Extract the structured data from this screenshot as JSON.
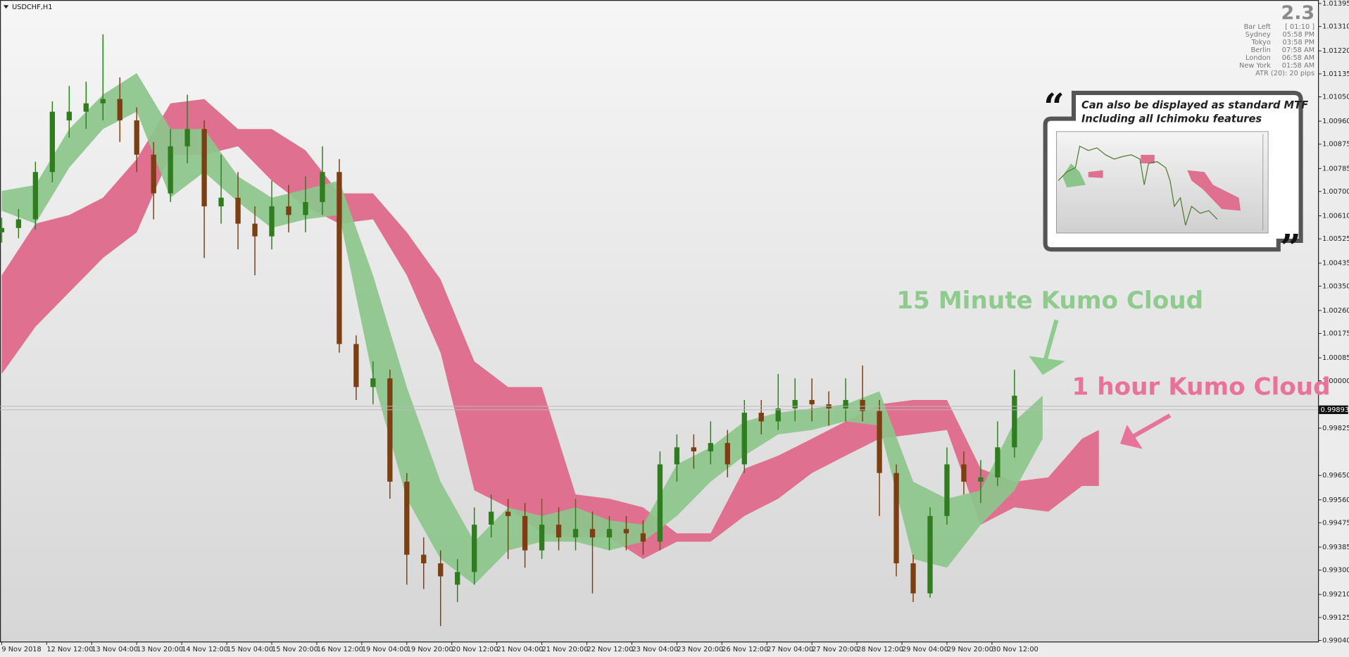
{
  "chart_data": {
    "type": "candlestick",
    "title": "USDCHF,H1",
    "up_color": "#2f7d1f",
    "down_color": "#7b3f12",
    "xlim": [
      -0.6,
      467.9
    ],
    "ylim": [
      0.99036,
      1.01408
    ],
    "yticks": [
      1.01395,
      {
        "value": 1.0131,
        "label": "1.01310"
      },
      {
        "value": 1.0122,
        "label": "1.01220"
      },
      1.01135,
      {
        "value": 1.0105,
        "label": "1.01050"
      },
      {
        "value": 1.0096,
        "label": "1.00960"
      },
      1.00875,
      1.00785,
      {
        "value": 1.007,
        "label": "1.00700"
      },
      {
        "value": 1.0061,
        "label": "1.00610"
      },
      1.00525,
      1.00435,
      {
        "value": 1.0035,
        "label": "1.00350"
      },
      {
        "value": 1.0026,
        "label": "1.00260"
      },
      1.00175,
      1.00085,
      {
        "value": 1,
        "label": "1.00000"
      },
      0.99825,
      {
        "value": 0.9965,
        "label": "0.99650"
      },
      {
        "value": 0.9956,
        "label": "0.99560"
      },
      0.99475,
      0.99385,
      {
        "value": 0.993,
        "label": "0.99300"
      },
      {
        "value": 0.9921,
        "label": "0.99210"
      },
      0.99125,
      {
        "value": 0.9904,
        "label": "0.99040"
      }
    ],
    "xticks": [
      {
        "value": 0,
        "label": "9 Nov 2018"
      },
      {
        "value": 16,
        "label": "12 Nov 12:00"
      },
      {
        "value": 32,
        "label": "13 Nov 04:00"
      },
      {
        "value": 48,
        "label": "13 Nov 20:00"
      },
      {
        "value": 64,
        "label": "14 Nov 12:00"
      },
      {
        "value": 80,
        "label": "15 Nov 04:00"
      },
      {
        "value": 96,
        "label": "15 Nov 20:00"
      },
      {
        "value": 112,
        "label": "16 Nov 12:00"
      },
      {
        "value": 128,
        "label": "19 Nov 04:00"
      },
      {
        "value": 144,
        "label": "19 Nov 20:00"
      },
      {
        "value": 160,
        "label": "20 Nov 12:00"
      },
      {
        "value": 176,
        "label": "21 Nov 04:00"
      },
      {
        "value": 192,
        "label": "21 Nov 20:00"
      },
      {
        "value": 208,
        "label": "22 Nov 12:00"
      },
      {
        "value": 224,
        "label": "23 Nov 04:00"
      },
      {
        "value": 240,
        "label": "23 Nov 20:00"
      },
      {
        "value": 256,
        "label": "26 Nov 12:00"
      },
      {
        "value": 272,
        "label": "27 Nov 04:00"
      },
      {
        "value": 288,
        "label": "27 Nov 20:00"
      },
      {
        "value": 304,
        "label": "28 Nov 12:00"
      },
      {
        "value": 320,
        "label": "29 Nov 04:00"
      },
      {
        "value": 336,
        "label": "29 Nov 20:00"
      },
      {
        "value": 352,
        "label": "30 Nov 12:00"
      }
    ],
    "current_price": 0.99893,
    "x": [
      0,
      6,
      12,
      18,
      24,
      30,
      36,
      42,
      48,
      54,
      60,
      66,
      72,
      78,
      84,
      90,
      96,
      102,
      108,
      114,
      120,
      126,
      132,
      138,
      144,
      150,
      156,
      162,
      168,
      174,
      180,
      186,
      192,
      198,
      204,
      210,
      216,
      222,
      228,
      234,
      240,
      246,
      252,
      258,
      264,
      270,
      276,
      282,
      288,
      294,
      300,
      306,
      312,
      318,
      324,
      330,
      336,
      342,
      348,
      354,
      360
    ],
    "candles": [
      [
        1.00549,
        1.00603,
        1.00511,
        1.00565
      ],
      [
        1.00565,
        1.00635,
        1.00527,
        1.00597
      ],
      [
        1.00597,
        1.0081,
        1.00559,
        1.00772
      ],
      [
        1.00772,
        1.01033,
        1.00734,
        1.00995
      ],
      [
        1.00963,
        1.0109,
        1.00899,
        1.00995
      ],
      [
        1.00995,
        1.01106,
        1.00931,
        1.01026
      ],
      [
        1.01026,
        1.01281,
        1.00963,
        1.01042
      ],
      [
        1.01042,
        1.01122,
        1.00883,
        1.00963
      ],
      [
        1.00963,
        1.01011,
        1.00772,
        1.00836
      ],
      [
        1.00836,
        1.00883,
        1.00597,
        1.00693
      ],
      [
        1.00693,
        1.00931,
        1.00661,
        1.00867
      ],
      [
        1.00867,
        1.01058,
        1.00804,
        1.00931
      ],
      [
        1.00931,
        1.00963,
        1.00454,
        1.00645
      ],
      [
        1.00645,
        1.00836,
        1.00581,
        1.00677
      ],
      [
        1.00677,
        1.00772,
        1.00486,
        1.00581
      ],
      [
        1.00581,
        1.00645,
        1.0039,
        1.00534
      ],
      [
        1.00534,
        1.0074,
        1.00486,
        1.00645
      ],
      [
        1.00645,
        1.00724,
        1.00549,
        1.00613
      ],
      [
        1.00613,
        1.00756,
        1.00549,
        1.00661
      ],
      [
        1.00661,
        1.00867,
        1.00613,
        1.00772
      ],
      [
        1.00772,
        1.0082,
        1.00104,
        1.00136
      ],
      [
        1.00136,
        1.00168,
        0.99929,
        0.99977
      ],
      [
        0.99977,
        1.00072,
        0.99913,
        1.00009
      ],
      [
        1.00009,
        1.00041,
        0.99564,
        0.99627
      ],
      [
        0.99627,
        0.99659,
        0.99246,
        0.99357
      ],
      [
        0.99357,
        0.99421,
        0.9923,
        0.99325
      ],
      [
        0.99325,
        0.99373,
        0.99093,
        0.99277
      ],
      [
        0.99246,
        0.99341,
        0.99182,
        0.99293
      ],
      [
        0.99293,
        0.99532,
        0.99246,
        0.99468
      ],
      [
        0.99468,
        0.9958,
        0.99421,
        0.99516
      ],
      [
        0.99516,
        0.99564,
        0.99341,
        0.995
      ],
      [
        0.995,
        0.99548,
        0.99309,
        0.99373
      ],
      [
        0.99373,
        0.99564,
        0.99341,
        0.99468
      ],
      [
        0.99468,
        0.99532,
        0.99373,
        0.99421
      ],
      [
        0.99421,
        0.99564,
        0.99373,
        0.99452
      ],
      [
        0.99452,
        0.99516,
        0.99214,
        0.99421
      ],
      [
        0.99421,
        0.995,
        0.99373,
        0.99452
      ],
      [
        0.99452,
        0.995,
        0.99373,
        0.99436
      ],
      [
        0.99436,
        0.99484,
        0.99357,
        0.99405
      ],
      [
        0.99405,
        0.99739,
        0.99373,
        0.99691
      ],
      [
        0.99691,
        0.99802,
        0.99627,
        0.99754
      ],
      [
        0.99754,
        0.99802,
        0.99675,
        0.99739
      ],
      [
        0.99739,
        0.9985,
        0.99691,
        0.9977
      ],
      [
        0.9977,
        0.99818,
        0.99643,
        0.99691
      ],
      [
        0.99691,
        0.99929,
        0.99659,
        0.99882
      ],
      [
        0.99882,
        0.99929,
        0.99802,
        0.9985
      ],
      [
        0.9985,
        1.00025,
        0.99818,
        0.99898
      ],
      [
        0.99898,
        1.00009,
        0.9985,
        0.99929
      ],
      [
        0.99929,
        1.00009,
        0.9985,
        0.99913
      ],
      [
        0.99913,
        0.99961,
        0.99834,
        0.99898
      ],
      [
        0.99898,
        1.00009,
        0.9985,
        0.99929
      ],
      [
        0.99929,
        1.00057,
        0.9985,
        0.99888
      ],
      [
        0.99888,
        0.99929,
        0.995,
        0.99659
      ],
      [
        0.99659,
        0.99691,
        0.99277,
        0.99325
      ],
      [
        0.99325,
        0.99357,
        0.99182,
        0.99214
      ],
      [
        0.99214,
        0.99532,
        0.99198,
        0.995
      ],
      [
        0.995,
        0.99754,
        0.99468,
        0.99691
      ],
      [
        0.99691,
        0.99739,
        0.9958,
        0.99627
      ],
      [
        0.99627,
        0.99707,
        0.99548,
        0.99643
      ],
      [
        0.99643,
        0.9985,
        0.99611,
        0.99754
      ],
      [
        0.99754,
        1.00041,
        0.99716,
        0.99945
      ]
    ],
    "clouds": [
      {
        "name": "1 hour Kumo Cloud",
        "color": "#e0708f",
        "x": [
          0,
          12,
          24,
          36,
          48,
          60,
          72,
          84,
          96,
          108,
          120,
          132,
          144,
          156,
          168,
          180,
          192,
          204,
          216,
          228,
          240,
          252,
          264,
          276,
          288,
          300,
          312,
          324,
          336,
          348,
          360,
          372,
          384,
          390
        ],
        "upper": [
          1.0039,
          1.00581,
          1.00613,
          1.00677,
          1.0082,
          1.01026,
          1.01042,
          1.00931,
          1.00931,
          1.00852,
          1.00693,
          1.00693,
          1.00549,
          1.00375,
          1.00072,
          0.99977,
          0.99977,
          0.9958,
          0.99564,
          0.99532,
          0.99436,
          0.99436,
          0.99675,
          0.99723,
          0.99786,
          0.9985,
          0.99913,
          0.99929,
          0.99929,
          0.99675,
          0.99627,
          0.99643,
          0.99786,
          0.99818
        ],
        "lower": [
          1.00025,
          1.002,
          1.00327,
          1.00454,
          1.00549,
          1.00836,
          1.00836,
          1.00867,
          1.0074,
          1.00645,
          1.00581,
          1.00597,
          1.0039,
          1.00104,
          0.99595,
          0.99532,
          0.99436,
          0.99421,
          0.99421,
          0.99341,
          0.99405,
          0.99405,
          0.995,
          0.99564,
          0.99659,
          0.99723,
          0.99786,
          0.99802,
          0.99818,
          0.99468,
          0.99532,
          0.99516,
          0.99611,
          0.99611
        ]
      },
      {
        "name": "15 Minute Kumo Cloud",
        "color": "#8cc58c",
        "x": [
          0,
          12,
          24,
          36,
          48,
          60,
          72,
          84,
          96,
          108,
          120,
          132,
          144,
          156,
          168,
          180,
          192,
          204,
          216,
          228,
          240,
          252,
          264,
          276,
          288,
          300,
          312,
          324,
          336,
          348,
          360,
          370
        ],
        "upper": [
          1.00702,
          1.00724,
          1.00931,
          1.01058,
          1.01138,
          1.00931,
          1.00931,
          1.00756,
          1.00677,
          1.00708,
          1.0074,
          1.0039,
          0.99977,
          0.99627,
          0.99405,
          0.99532,
          0.995,
          0.99532,
          0.99484,
          0.99468,
          0.99691,
          0.99754,
          0.9985,
          0.99882,
          0.99898,
          0.99913,
          0.99961,
          0.99627,
          0.99564,
          0.99595,
          0.9985,
          0.99945
        ],
        "lower": [
          1.00629,
          1.00581,
          1.00788,
          1.00931,
          1.00995,
          1.00677,
          1.00772,
          1.00661,
          1.00565,
          1.00597,
          1.00613,
          1.00009,
          0.99564,
          0.99341,
          0.99246,
          0.99373,
          0.99405,
          0.99405,
          0.99373,
          0.99405,
          0.995,
          0.99627,
          0.99723,
          0.99802,
          0.99818,
          0.9985,
          0.99834,
          0.99341,
          0.99309,
          0.99468,
          0.99595,
          0.99786
        ]
      }
    ]
  },
  "info_panel": {
    "value": "2.3",
    "rows": [
      {
        "label": "Bar Left",
        "value": "[ 01:10 ]"
      },
      {
        "label": "Sydney",
        "value": "05:58 PM"
      },
      {
        "label": "Tokyo",
        "value": "03:58 PM"
      },
      {
        "label": "Berlin",
        "value": "07:58 AM"
      },
      {
        "label": "London",
        "value": "06:58 AM"
      },
      {
        "label": "New York",
        "value": "01:58 AM"
      }
    ],
    "atr": "ATR (20): 20 pips"
  },
  "promo": {
    "lines": [
      "Can also be displayed as standard MTF",
      "Including all Ichimoku features"
    ]
  }
}
